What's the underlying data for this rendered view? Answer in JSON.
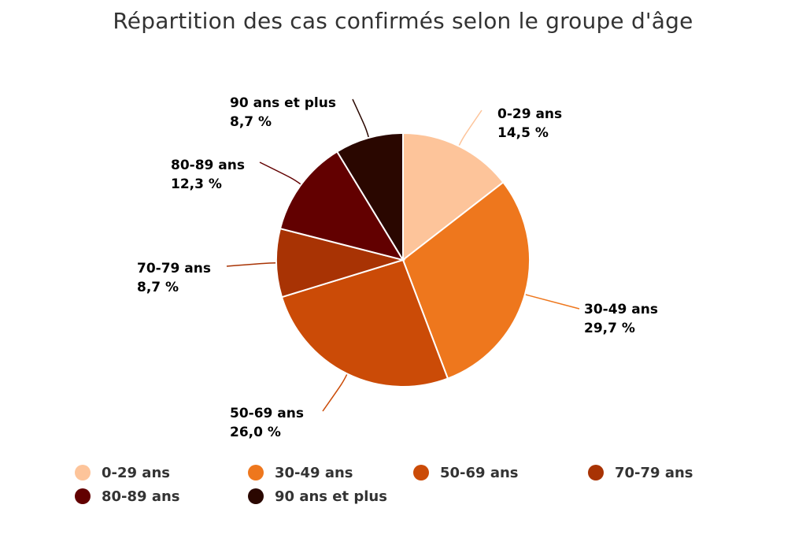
{
  "chart_data": {
    "type": "pie",
    "title": "Répartition des cas confirmés selon le groupe d'âge",
    "slices": [
      {
        "label": "0-29 ans",
        "value": 14.5,
        "value_text": "14,5 %",
        "color": "#FDC49A"
      },
      {
        "label": "30-49 ans",
        "value": 29.7,
        "value_text": "29,7 %",
        "color": "#EE771D"
      },
      {
        "label": "50-69 ans",
        "value": 26.0,
        "value_text": "26,0 %",
        "color": "#CB4B07"
      },
      {
        "label": "70-79 ans",
        "value": 8.7,
        "value_text": "8,7 %",
        "color": "#A83304"
      },
      {
        "label": "80-89 ans",
        "value": 12.3,
        "value_text": "12,3 %",
        "color": "#620000"
      },
      {
        "label": "90 ans et plus",
        "value": 8.7,
        "value_text": "8,7 %",
        "color": "#2A0700"
      }
    ],
    "legend_placement": "bottom"
  }
}
